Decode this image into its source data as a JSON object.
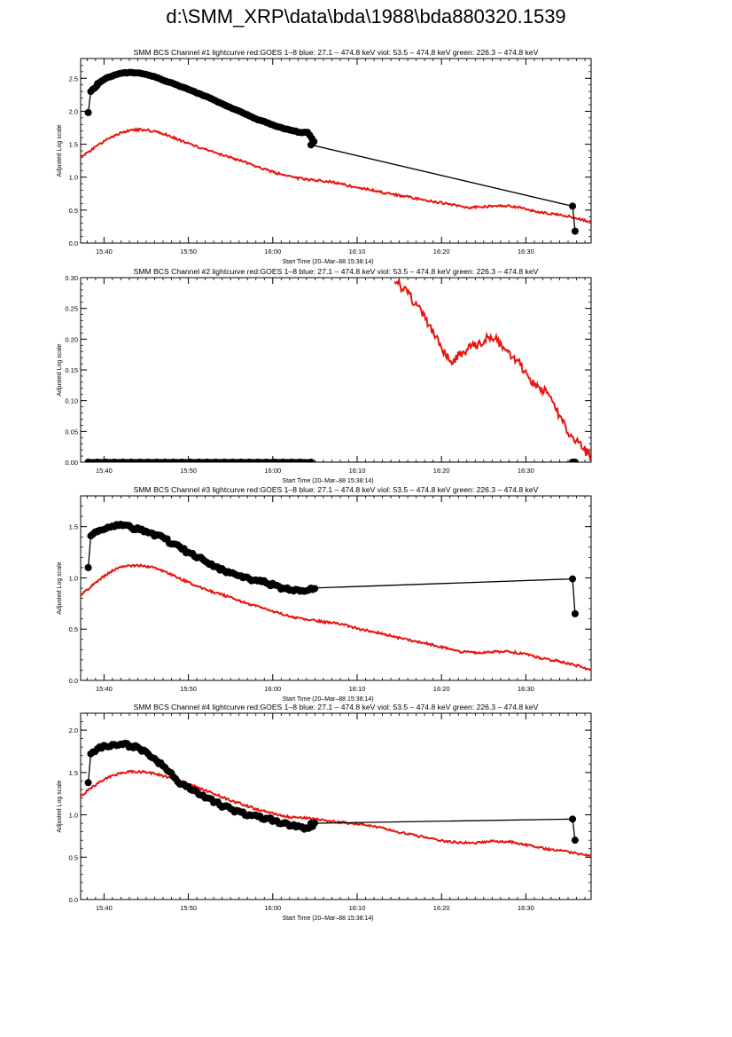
{
  "page": {
    "title": "d:\\SMM_XRP\\data\\bda\\1988\\bda880320.1539"
  },
  "colors": {
    "goes": "#e8150c",
    "bcs": "#000000",
    "axis": "#000000"
  },
  "chart_data": [
    {
      "type": "line",
      "title": "SMM BCS Channel #1 lightcurve  red:GOES 1–8  blue: 27.1 – 474.8 keV  viol: 53.5 – 474.8 keV  green: 226.3 – 474.8 keV",
      "xlabel": "Start Time (20–Mar–88 15:38:14)",
      "ylabel": "Adjusted Log scale",
      "xlim": [
        -1.0,
        59.5
      ],
      "ylim": [
        0.0,
        2.8
      ],
      "xticks": [
        1.77,
        11.77,
        21.77,
        31.77,
        41.77,
        51.77
      ],
      "xtick_labels": [
        "15:40",
        "15:50",
        "16:00",
        "16:10",
        "16:20",
        "16:30"
      ],
      "yticks": [
        0.0,
        0.5,
        1.0,
        1.5,
        2.0,
        2.5
      ],
      "ytick_labels": [
        "0.0",
        "0.5",
        "1.0",
        "1.5",
        "2.0",
        "2.5"
      ],
      "series": [
        {
          "name": "GOES 1–8",
          "color": "#e8150c",
          "style": "line",
          "x": [
            -1,
            0,
            1,
            2,
            3,
            4,
            5,
            6,
            7,
            8,
            9,
            10,
            12,
            14,
            16,
            18,
            20,
            22,
            24,
            26,
            28,
            30,
            31.5,
            33,
            35,
            37,
            39,
            41,
            43,
            45,
            47,
            49,
            51,
            53,
            55,
            57,
            59.5
          ],
          "y": [
            1.3,
            1.39,
            1.48,
            1.56,
            1.63,
            1.68,
            1.71,
            1.72,
            1.71,
            1.69,
            1.65,
            1.6,
            1.5,
            1.41,
            1.33,
            1.25,
            1.15,
            1.07,
            1.0,
            0.96,
            0.94,
            0.9,
            0.84,
            0.82,
            0.76,
            0.72,
            0.67,
            0.63,
            0.58,
            0.54,
            0.55,
            0.57,
            0.54,
            0.48,
            0.44,
            0.4,
            0.32
          ]
        },
        {
          "name": "BCS Channel #1",
          "color": "#000000",
          "style": "line-markers",
          "x": [
            -0.1,
            0.2,
            1,
            2,
            3,
            4,
            5,
            6,
            7,
            8,
            9,
            10,
            11,
            12,
            13,
            14,
            15,
            16,
            17,
            18,
            19,
            20,
            21,
            22,
            23,
            24,
            25,
            25.9,
            26.3,
            57.3,
            57.6
          ],
          "y": [
            1.98,
            2.3,
            2.42,
            2.5,
            2.55,
            2.58,
            2.59,
            2.58,
            2.55,
            2.51,
            2.46,
            2.42,
            2.37,
            2.32,
            2.27,
            2.22,
            2.16,
            2.1,
            2.04,
            1.99,
            1.93,
            1.87,
            1.83,
            1.78,
            1.74,
            1.71,
            1.68,
            1.68,
            1.49,
            0.56,
            0.18
          ]
        }
      ]
    },
    {
      "type": "line",
      "title": "SMM BCS Channel #2 lightcurve  red:GOES 1–8  blue: 27.1 – 474.8 keV  viol: 53.5 – 474.8 keV  green: 226.3 – 474.8 keV",
      "xlabel": "Start Time (20–Mar–88 15:38:14)",
      "ylabel": "Adjusted Log scale",
      "xlim": [
        -1.0,
        59.5
      ],
      "ylim": [
        0.0,
        0.3
      ],
      "xticks": [
        1.77,
        11.77,
        21.77,
        31.77,
        41.77,
        51.77
      ],
      "xtick_labels": [
        "15:40",
        "15:50",
        "16:00",
        "16:10",
        "16:20",
        "16:30"
      ],
      "yticks": [
        0.0,
        0.05,
        0.1,
        0.15,
        0.2,
        0.25,
        0.3
      ],
      "ytick_labels": [
        "0.00",
        "0.05",
        "0.10",
        "0.15",
        "0.20",
        "0.25",
        "0.30"
      ],
      "series": [
        {
          "name": "GOES 1–8",
          "color": "#e8150c",
          "style": "line",
          "x": [
            36.2,
            37,
            38,
            39,
            40,
            41,
            42,
            43,
            44,
            45,
            46,
            47,
            48,
            49,
            50,
            51,
            52,
            53,
            54,
            55,
            56,
            57,
            58,
            59,
            59.5
          ],
          "y": [
            0.3,
            0.285,
            0.27,
            0.25,
            0.23,
            0.205,
            0.18,
            0.165,
            0.175,
            0.185,
            0.19,
            0.2,
            0.205,
            0.185,
            0.17,
            0.16,
            0.14,
            0.125,
            0.115,
            0.095,
            0.07,
            0.045,
            0.03,
            0.015,
            0.008
          ]
        },
        {
          "name": "BCS Channel #2",
          "color": "#000000",
          "style": "line-markers",
          "x": [
            -0.1,
            1,
            2,
            3,
            4,
            5,
            6,
            7,
            8,
            9,
            10,
            11,
            12,
            13,
            14,
            15,
            16,
            17,
            18,
            19,
            20,
            21,
            22,
            23,
            24,
            25,
            26.3,
            57.3,
            57.6
          ],
          "y": [
            0.0,
            0.0,
            0.0,
            0.0,
            0.0,
            0.0,
            0.0,
            0.0,
            0.0,
            0.0,
            0.0,
            0.0,
            0.0,
            0.0,
            0.0,
            0.0,
            0.0,
            0.0,
            0.0,
            0.0,
            0.0,
            0.0,
            0.0,
            0.0,
            0.0,
            0.0,
            0.0,
            0.0,
            0.0
          ]
        }
      ]
    },
    {
      "type": "line",
      "title": "SMM BCS Channel #3 lightcurve  red:GOES 1–8  blue: 27.1 – 474.8 keV  viol: 53.5 – 474.8 keV  green: 226.3 – 474.8 keV",
      "xlabel": "Start Time (20–Mar–88 15:38:14)",
      "ylabel": "Adjusted Log scale",
      "xlim": [
        -1.0,
        59.5
      ],
      "ylim": [
        0.0,
        1.8
      ],
      "xticks": [
        1.77,
        11.77,
        21.77,
        31.77,
        41.77,
        51.77
      ],
      "xtick_labels": [
        "15:40",
        "15:50",
        "16:00",
        "16:10",
        "16:20",
        "16:30"
      ],
      "yticks": [
        0.0,
        0.5,
        1.0,
        1.5
      ],
      "ytick_labels": [
        "0.0",
        "0.5",
        "1.0",
        "1.5"
      ],
      "series": [
        {
          "name": "GOES 1–8",
          "color": "#e8150c",
          "style": "line",
          "x": [
            -1,
            0,
            1,
            2,
            3,
            4,
            5,
            6,
            7,
            8,
            9,
            10,
            12,
            14,
            16,
            18,
            20,
            22,
            24,
            26,
            28,
            30,
            32,
            34,
            36,
            38,
            40,
            42,
            44,
            46,
            48,
            50,
            52,
            54,
            56,
            58,
            59.5
          ],
          "y": [
            0.83,
            0.9,
            0.97,
            1.03,
            1.08,
            1.11,
            1.12,
            1.12,
            1.11,
            1.09,
            1.06,
            1.02,
            0.95,
            0.88,
            0.83,
            0.77,
            0.72,
            0.67,
            0.62,
            0.59,
            0.57,
            0.55,
            0.5,
            0.47,
            0.43,
            0.39,
            0.36,
            0.32,
            0.28,
            0.27,
            0.28,
            0.28,
            0.25,
            0.21,
            0.18,
            0.14,
            0.1
          ]
        },
        {
          "name": "BCS Channel #3",
          "color": "#000000",
          "style": "line-markers",
          "x": [
            -0.1,
            0.2,
            1,
            2,
            3,
            4,
            5,
            6,
            7,
            8,
            9,
            10,
            11,
            12,
            13,
            14,
            15,
            16,
            17,
            18,
            19,
            20,
            21,
            22,
            23,
            24,
            25,
            26,
            26.3,
            57.3,
            57.6
          ],
          "y": [
            1.1,
            1.41,
            1.45,
            1.48,
            1.5,
            1.51,
            1.49,
            1.47,
            1.44,
            1.42,
            1.38,
            1.33,
            1.28,
            1.24,
            1.2,
            1.15,
            1.11,
            1.07,
            1.05,
            1.02,
            0.99,
            0.97,
            0.95,
            0.93,
            0.9,
            0.88,
            0.87,
            0.88,
            0.9,
            0.99,
            0.65
          ]
        }
      ]
    },
    {
      "type": "line",
      "title": "SMM BCS Channel #4 lightcurve  red:GOES 1–8  blue: 27.1 – 474.8 keV  viol: 53.5 – 474.8 keV  green: 226.3 – 474.8 keV",
      "xlabel": "Start Time (20–Mar–88 15:38:14)",
      "ylabel": "Adjusted Log scale",
      "xlim": [
        -1.0,
        59.5
      ],
      "ylim": [
        0.0,
        2.2
      ],
      "xticks": [
        1.77,
        11.77,
        21.77,
        31.77,
        41.77,
        51.77
      ],
      "xtick_labels": [
        "15:40",
        "15:50",
        "16:00",
        "16:10",
        "16:20",
        "16:30"
      ],
      "yticks": [
        0.0,
        0.5,
        1.0,
        1.5,
        2.0
      ],
      "ytick_labels": [
        "0.0",
        "0.5",
        "1.0",
        "1.5",
        "2.0"
      ],
      "series": [
        {
          "name": "GOES 1–8",
          "color": "#e8150c",
          "style": "line",
          "x": [
            -1,
            0,
            1,
            2,
            3,
            4,
            5,
            6,
            7,
            8,
            9,
            10,
            12,
            14,
            16,
            18,
            20,
            22,
            24,
            26,
            28,
            30,
            32,
            34,
            36,
            38,
            40,
            42,
            44,
            46,
            48,
            50,
            52,
            54,
            56,
            58,
            59.5
          ],
          "y": [
            1.22,
            1.3,
            1.37,
            1.43,
            1.47,
            1.5,
            1.51,
            1.51,
            1.5,
            1.48,
            1.45,
            1.42,
            1.36,
            1.28,
            1.2,
            1.13,
            1.06,
            1.01,
            0.97,
            0.96,
            0.93,
            0.91,
            0.89,
            0.86,
            0.81,
            0.77,
            0.73,
            0.69,
            0.67,
            0.67,
            0.69,
            0.68,
            0.64,
            0.6,
            0.58,
            0.54,
            0.51
          ]
        },
        {
          "name": "BCS Channel #4",
          "color": "#000000",
          "style": "line-markers",
          "x": [
            -0.1,
            0.2,
            1,
            2,
            3,
            4,
            5,
            6,
            7,
            8,
            9,
            10,
            11,
            12,
            13,
            14,
            15,
            16,
            17,
            18,
            19,
            20,
            21,
            22,
            23,
            24,
            25,
            26,
            26.3,
            57.3,
            57.6
          ],
          "y": [
            1.38,
            1.72,
            1.78,
            1.81,
            1.83,
            1.83,
            1.81,
            1.78,
            1.72,
            1.64,
            1.56,
            1.45,
            1.36,
            1.3,
            1.24,
            1.2,
            1.15,
            1.1,
            1.06,
            1.03,
            1.0,
            0.98,
            0.96,
            0.93,
            0.9,
            0.87,
            0.86,
            0.84,
            0.9,
            0.95,
            0.7
          ]
        }
      ]
    }
  ]
}
